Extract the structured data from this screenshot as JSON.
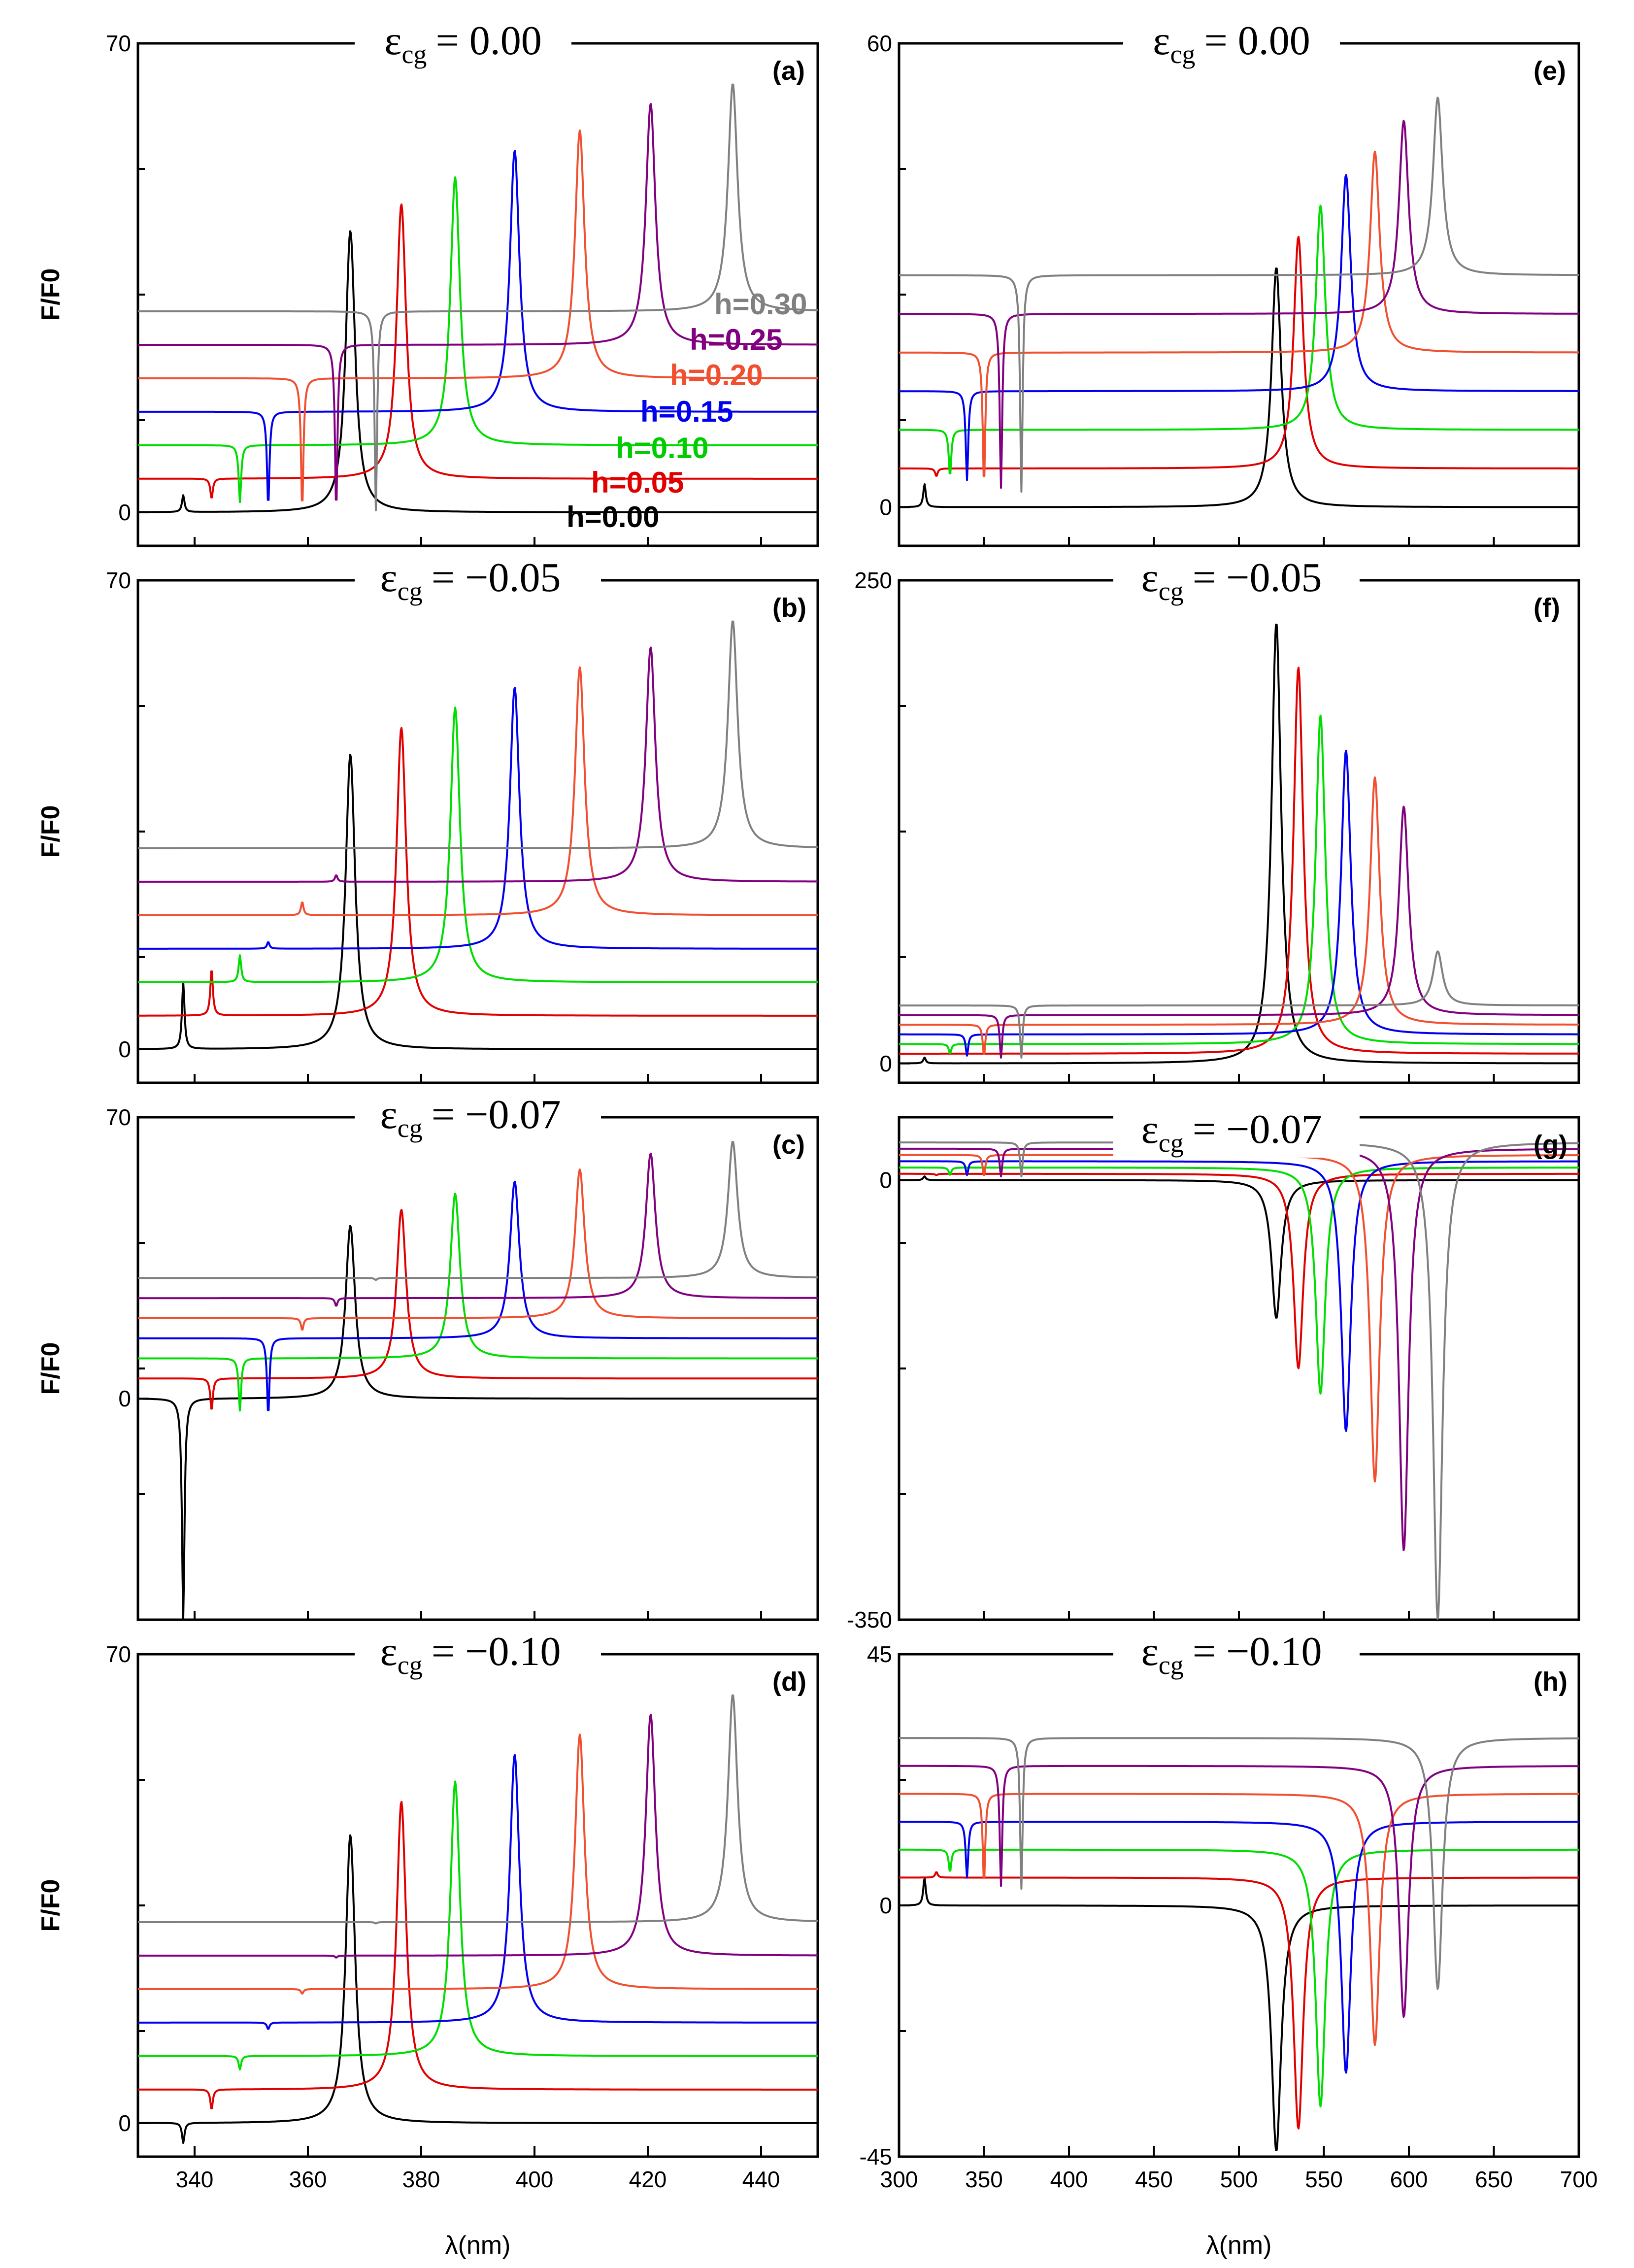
{
  "chart_data": [
    {
      "id": "a",
      "type": "line",
      "panel_label": "(a)",
      "title_symbol": "ε",
      "title_subscript": "cg",
      "title_value": "= 0.00",
      "xlabel": "",
      "ylabel": "F/F0",
      "xlim": [
        330,
        450
      ],
      "ylim": [
        -5,
        70
      ],
      "x_ticks": [],
      "y_ticks": [
        0,
        70
      ],
      "peak_mode": "peak",
      "sharp_strength": 1,
      "series": [
        {
          "name": "h=0.00",
          "color": "#000000",
          "baseline": 0,
          "peak_x": 367.5,
          "peak_y": 42,
          "sharp_x": 338,
          "sharp_y": 2.5
        },
        {
          "name": "h=0.05",
          "color": "#e00000",
          "baseline": 5,
          "peak_x": 376.5,
          "peak_y": 46,
          "sharp_x": 343,
          "sharp_y": 2
        },
        {
          "name": "h=0.10",
          "color": "#00dd00",
          "baseline": 10,
          "peak_x": 386,
          "peak_y": 50,
          "sharp_x": 348,
          "sharp_y": 1.5
        },
        {
          "name": "h=0.15",
          "color": "#0000ee",
          "baseline": 15,
          "peak_x": 396.5,
          "peak_y": 54,
          "sharp_x": 353,
          "sharp_y": 1
        },
        {
          "name": "h=0.20",
          "color": "#f05030",
          "baseline": 20,
          "peak_x": 408,
          "peak_y": 57,
          "sharp_x": 359,
          "sharp_y": 0.6
        },
        {
          "name": "h=0.25",
          "color": "#800080",
          "baseline": 25,
          "peak_x": 420.5,
          "peak_y": 61,
          "sharp_x": 365,
          "sharp_y": 0.4
        },
        {
          "name": "h=0.30",
          "color": "#808080",
          "baseline": 30,
          "peak_x": 435,
          "peak_y": 64,
          "sharp_x": 372,
          "sharp_y": 0.3
        }
      ]
    },
    {
      "id": "b",
      "type": "line",
      "panel_label": "(b)",
      "title_symbol": "ε",
      "title_subscript": "cg",
      "title_value": "= −0.05",
      "xlabel": "",
      "ylabel": "F/F0",
      "xlim": [
        330,
        450
      ],
      "ylim": [
        -5,
        70
      ],
      "x_ticks": [],
      "y_ticks": [
        0,
        70
      ],
      "peak_mode": "peak",
      "sharp_strength": 1,
      "series": [
        {
          "name": "h=0.00",
          "color": "#000000",
          "baseline": 0,
          "peak_x": 367.5,
          "peak_y": 44,
          "sharp_x": 338,
          "sharp_y": 10
        },
        {
          "name": "h=0.05",
          "color": "#e00000",
          "baseline": 5,
          "peak_x": 376.5,
          "peak_y": 48,
          "sharp_x": 343,
          "sharp_y": 12
        },
        {
          "name": "h=0.10",
          "color": "#00dd00",
          "baseline": 10,
          "peak_x": 386,
          "peak_y": 51,
          "sharp_x": 348,
          "sharp_y": 14
        },
        {
          "name": "h=0.15",
          "color": "#0000ee",
          "baseline": 15,
          "peak_x": 396.5,
          "peak_y": 54,
          "sharp_x": 353,
          "sharp_y": 16
        },
        {
          "name": "h=0.20",
          "color": "#f05030",
          "baseline": 20,
          "peak_x": 408,
          "peak_y": 57,
          "sharp_x": 359,
          "sharp_y": 22
        },
        {
          "name": "h=0.25",
          "color": "#800080",
          "baseline": 25,
          "peak_x": 420.5,
          "peak_y": 60,
          "sharp_x": 365,
          "sharp_y": 26
        },
        {
          "name": "h=0.30",
          "color": "#808080",
          "baseline": 30,
          "peak_x": 435,
          "peak_y": 64,
          "sharp_x": 372,
          "sharp_y": 30
        }
      ]
    },
    {
      "id": "c",
      "type": "line",
      "panel_label": "(c)",
      "title_symbol": "ε",
      "title_subscript": "cg",
      "title_value": "= −0.07",
      "xlabel": "",
      "ylabel": "F/F0",
      "xlim": [
        330,
        450
      ],
      "ylim": [
        -55,
        70
      ],
      "x_ticks": [],
      "y_ticks": [
        0,
        70
      ],
      "peak_mode": "peak",
      "sharp_strength": 1,
      "series": [
        {
          "name": "h=0.00",
          "color": "#000000",
          "baseline": 0,
          "peak_x": 367.5,
          "peak_y": 43,
          "sharp_x": 338,
          "sharp_y": -55
        },
        {
          "name": "h=0.05",
          "color": "#e00000",
          "baseline": 5,
          "peak_x": 376.5,
          "peak_y": 47,
          "sharp_x": 343,
          "sharp_y": -3
        },
        {
          "name": "h=0.10",
          "color": "#00dd00",
          "baseline": 10,
          "peak_x": 386,
          "peak_y": 51,
          "sharp_x": 348,
          "sharp_y": -3
        },
        {
          "name": "h=0.15",
          "color": "#0000ee",
          "baseline": 15,
          "peak_x": 396.5,
          "peak_y": 54,
          "sharp_x": 353,
          "sharp_y": -4
        },
        {
          "name": "h=0.20",
          "color": "#f05030",
          "baseline": 20,
          "peak_x": 408,
          "peak_y": 57,
          "sharp_x": 359,
          "sharp_y": 17
        },
        {
          "name": "h=0.25",
          "color": "#800080",
          "baseline": 25,
          "peak_x": 420.5,
          "peak_y": 61,
          "sharp_x": 365,
          "sharp_y": 23
        },
        {
          "name": "h=0.30",
          "color": "#808080",
          "baseline": 30,
          "peak_x": 435,
          "peak_y": 64,
          "sharp_x": 372,
          "sharp_y": 29.5
        }
      ]
    },
    {
      "id": "d",
      "type": "line",
      "panel_label": "(d)",
      "title_symbol": "ε",
      "title_subscript": "cg",
      "title_value": "= −0.10",
      "xlabel": "λ(nm)",
      "ylabel": "F/F0",
      "xlim": [
        330,
        450
      ],
      "ylim": [
        -5,
        70
      ],
      "x_ticks": [
        340,
        360,
        380,
        400,
        420,
        440
      ],
      "y_ticks": [
        0,
        70
      ],
      "peak_mode": "peak",
      "sharp_strength": 1,
      "series": [
        {
          "name": "h=0.00",
          "color": "#000000",
          "baseline": 0,
          "peak_x": 367.5,
          "peak_y": 43,
          "sharp_x": 338,
          "sharp_y": -3
        },
        {
          "name": "h=0.05",
          "color": "#e00000",
          "baseline": 5,
          "peak_x": 376.5,
          "peak_y": 48,
          "sharp_x": 343,
          "sharp_y": 2
        },
        {
          "name": "h=0.10",
          "color": "#00dd00",
          "baseline": 10,
          "peak_x": 386,
          "peak_y": 51,
          "sharp_x": 348,
          "sharp_y": 8
        },
        {
          "name": "h=0.15",
          "color": "#0000ee",
          "baseline": 15,
          "peak_x": 396.5,
          "peak_y": 55,
          "sharp_x": 353,
          "sharp_y": 14
        },
        {
          "name": "h=0.20",
          "color": "#f05030",
          "baseline": 20,
          "peak_x": 408,
          "peak_y": 58,
          "sharp_x": 359,
          "sharp_y": 19.3
        },
        {
          "name": "h=0.25",
          "color": "#800080",
          "baseline": 25,
          "peak_x": 420.5,
          "peak_y": 61,
          "sharp_x": 365,
          "sharp_y": 24.7
        },
        {
          "name": "h=0.30",
          "color": "#808080",
          "baseline": 30,
          "peak_x": 435,
          "peak_y": 64,
          "sharp_x": 372,
          "sharp_y": 29.8
        }
      ]
    },
    {
      "id": "e",
      "type": "line",
      "panel_label": "(e)",
      "title_symbol": "ε",
      "title_subscript": "cg",
      "title_value": "= 0.00",
      "xlabel": "",
      "ylabel": "",
      "xlim": [
        300,
        700
      ],
      "ylim": [
        -5,
        60
      ],
      "x_ticks": [],
      "y_ticks": [
        0,
        60
      ],
      "peak_mode": "peak",
      "sharp_strength": 1,
      "series": [
        {
          "name": "h=0.00",
          "color": "#000000",
          "baseline": 0,
          "peak_x": 522,
          "peak_y": 31,
          "sharp_x": 315,
          "sharp_y": 3
        },
        {
          "name": "h=0.05",
          "color": "#e00000",
          "baseline": 5,
          "peak_x": 535,
          "peak_y": 35,
          "sharp_x": 322,
          "sharp_y": 4
        },
        {
          "name": "h=0.10",
          "color": "#00dd00",
          "baseline": 10,
          "peak_x": 548,
          "peak_y": 39,
          "sharp_x": 330,
          "sharp_y": 4
        },
        {
          "name": "h=0.15",
          "color": "#0000ee",
          "baseline": 15,
          "peak_x": 563,
          "peak_y": 43,
          "sharp_x": 340,
          "sharp_y": 3.5
        },
        {
          "name": "h=0.20",
          "color": "#f05030",
          "baseline": 20,
          "peak_x": 580,
          "peak_y": 46,
          "sharp_x": 350,
          "sharp_y": 3
        },
        {
          "name": "h=0.25",
          "color": "#800080",
          "baseline": 25,
          "peak_x": 597,
          "peak_y": 50,
          "sharp_x": 360,
          "sharp_y": 2.5
        },
        {
          "name": "h=0.30",
          "color": "#808080",
          "baseline": 30,
          "peak_x": 617,
          "peak_y": 53,
          "sharp_x": 372,
          "sharp_y": 2
        }
      ]
    },
    {
      "id": "f",
      "type": "line",
      "panel_label": "(f)",
      "title_symbol": "ε",
      "title_subscript": "cg",
      "title_value": "= −0.05",
      "xlabel": "",
      "ylabel": "",
      "xlim": [
        300,
        700
      ],
      "ylim": [
        -10,
        250
      ],
      "x_ticks": [],
      "y_ticks": [
        0,
        250
      ],
      "peak_mode": "peak",
      "sharp_strength": 1,
      "series": [
        {
          "name": "h=0.00",
          "color": "#000000",
          "baseline": 0,
          "peak_x": 522,
          "peak_y": 228,
          "sharp_x": 315,
          "sharp_y": 3
        },
        {
          "name": "h=0.05",
          "color": "#e00000",
          "baseline": 5,
          "peak_x": 535,
          "peak_y": 205,
          "sharp_x": 322,
          "sharp_y": 5
        },
        {
          "name": "h=0.10",
          "color": "#00dd00",
          "baseline": 10,
          "peak_x": 548,
          "peak_y": 180,
          "sharp_x": 330,
          "sharp_y": 5
        },
        {
          "name": "h=0.15",
          "color": "#0000ee",
          "baseline": 15,
          "peak_x": 563,
          "peak_y": 162,
          "sharp_x": 340,
          "sharp_y": 4
        },
        {
          "name": "h=0.20",
          "color": "#f05030",
          "baseline": 20,
          "peak_x": 580,
          "peak_y": 148,
          "sharp_x": 350,
          "sharp_y": 4
        },
        {
          "name": "h=0.25",
          "color": "#800080",
          "baseline": 25,
          "peak_x": 597,
          "peak_y": 133,
          "sharp_x": 360,
          "sharp_y": 3
        },
        {
          "name": "h=0.30",
          "color": "#808080",
          "baseline": 30,
          "peak_x": 617,
          "peak_y": 58,
          "sharp_x": 372,
          "sharp_y": 3
        }
      ]
    },
    {
      "id": "g",
      "type": "line",
      "panel_label": "(g)",
      "title_symbol": "ε",
      "title_subscript": "cg",
      "title_value": "= −0.07",
      "xlabel": "",
      "ylabel": "",
      "xlim": [
        300,
        700
      ],
      "ylim": [
        -350,
        50
      ],
      "x_ticks": [],
      "y_ticks": [
        0,
        -350
      ],
      "peak_mode": "dip",
      "sharp_strength": 1,
      "series": [
        {
          "name": "h=0.00",
          "color": "#000000",
          "baseline": 0,
          "peak_x": 522,
          "peak_y": -110,
          "sharp_x": 315,
          "sharp_y": 3
        },
        {
          "name": "h=0.05",
          "color": "#e00000",
          "baseline": 5,
          "peak_x": 535,
          "peak_y": -150,
          "sharp_x": 322,
          "sharp_y": 4
        },
        {
          "name": "h=0.10",
          "color": "#00dd00",
          "baseline": 10,
          "peak_x": 548,
          "peak_y": -170,
          "sharp_x": 330,
          "sharp_y": 4
        },
        {
          "name": "h=0.15",
          "color": "#0000ee",
          "baseline": 15,
          "peak_x": 563,
          "peak_y": -200,
          "sharp_x": 340,
          "sharp_y": 4
        },
        {
          "name": "h=0.20",
          "color": "#f05030",
          "baseline": 20,
          "peak_x": 580,
          "peak_y": -240,
          "sharp_x": 350,
          "sharp_y": 3
        },
        {
          "name": "h=0.25",
          "color": "#800080",
          "baseline": 25,
          "peak_x": 597,
          "peak_y": -295,
          "sharp_x": 360,
          "sharp_y": 3
        },
        {
          "name": "h=0.30",
          "color": "#808080",
          "baseline": 30,
          "peak_x": 617,
          "peak_y": -350,
          "sharp_x": 372,
          "sharp_y": 3
        }
      ]
    },
    {
      "id": "h",
      "type": "line",
      "panel_label": "(h)",
      "title_symbol": "ε",
      "title_subscript": "cg",
      "title_value": "= −0.10",
      "xlabel": "λ(nm)",
      "ylabel": "",
      "xlim": [
        300,
        700
      ],
      "ylim": [
        -45,
        45
      ],
      "x_ticks": [
        300,
        350,
        400,
        450,
        500,
        550,
        600,
        650,
        700
      ],
      "y_ticks": [
        -45,
        0,
        45
      ],
      "peak_mode": "dip",
      "sharp_strength": 1,
      "series": [
        {
          "name": "h=0.00",
          "color": "#000000",
          "baseline": 0,
          "peak_x": 522,
          "peak_y": -44,
          "sharp_x": 315,
          "sharp_y": 5
        },
        {
          "name": "h=0.05",
          "color": "#e00000",
          "baseline": 5,
          "peak_x": 535,
          "peak_y": -40,
          "sharp_x": 322,
          "sharp_y": 6
        },
        {
          "name": "h=0.10",
          "color": "#00dd00",
          "baseline": 10,
          "peak_x": 548,
          "peak_y": -36,
          "sharp_x": 330,
          "sharp_y": 6
        },
        {
          "name": "h=0.15",
          "color": "#0000ee",
          "baseline": 15,
          "peak_x": 563,
          "peak_y": -30,
          "sharp_x": 340,
          "sharp_y": 5
        },
        {
          "name": "h=0.20",
          "color": "#f05030",
          "baseline": 20,
          "peak_x": 580,
          "peak_y": -25,
          "sharp_x": 350,
          "sharp_y": 4
        },
        {
          "name": "h=0.25",
          "color": "#800080",
          "baseline": 25,
          "peak_x": 597,
          "peak_y": -20,
          "sharp_x": 360,
          "sharp_y": 3.5
        },
        {
          "name": "h=0.30",
          "color": "#808080",
          "baseline": 30,
          "peak_x": 617,
          "peak_y": -15,
          "sharp_x": 372,
          "sharp_y": 3
        }
      ]
    }
  ]
}
